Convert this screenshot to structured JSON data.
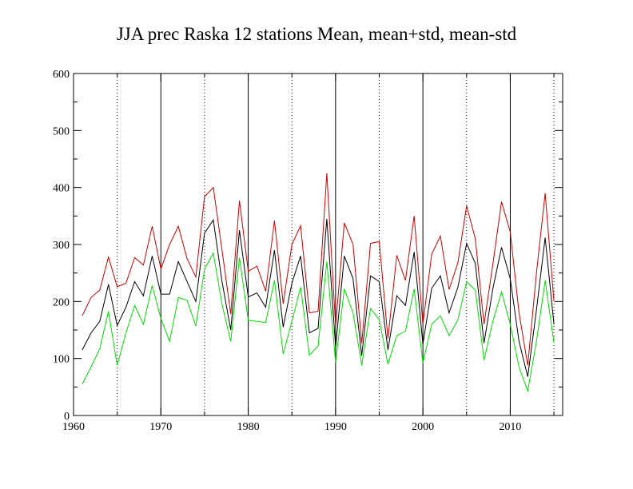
{
  "chart_data": {
    "type": "line",
    "title": "JJA prec Raska 12 stations Mean, mean+std, mean-std",
    "xlabel": "",
    "ylabel": "",
    "xlim": [
      1960,
      2016
    ],
    "ylim": [
      0,
      600
    ],
    "x_ticks": [
      1960,
      1970,
      1980,
      1990,
      2000,
      2010
    ],
    "y_ticks": [
      0,
      100,
      200,
      300,
      400,
      500,
      600
    ],
    "x_major_gridlines": [
      1970,
      1980,
      1990,
      2000,
      2010
    ],
    "x_dotted_gridlines": [
      1965,
      1975,
      1985,
      1995,
      2005,
      2015
    ],
    "grid": true,
    "legend": "none",
    "x": [
      1961,
      1962,
      1963,
      1964,
      1965,
      1966,
      1967,
      1968,
      1969,
      1970,
      1971,
      1972,
      1973,
      1974,
      1975,
      1976,
      1977,
      1978,
      1979,
      1980,
      1981,
      1982,
      1983,
      1984,
      1985,
      1986,
      1987,
      1988,
      1989,
      1990,
      1991,
      1992,
      1993,
      1994,
      1995,
      1996,
      1997,
      1998,
      1999,
      2000,
      2001,
      2002,
      2003,
      2004,
      2005,
      2006,
      2007,
      2008,
      2009,
      2010,
      2011,
      2012,
      2013,
      2014,
      2015
    ],
    "series": [
      {
        "color": "#cc0000",
        "values": [
          175,
          207,
          220,
          278,
          226,
          232,
          277,
          264,
          332,
          257,
          300,
          332,
          275,
          243,
          384,
          400,
          290,
          178,
          377,
          253,
          262,
          218,
          342,
          196,
          300,
          333,
          180,
          183,
          425,
          157,
          338,
          300,
          127,
          302,
          305,
          135,
          281,
          237,
          350,
          160,
          283,
          315,
          221,
          268,
          368,
          310,
          160,
          265,
          375,
          322,
          180,
          88,
          250,
          390,
          200
        ]
      },
      {
        "color": "#000000",
        "values": [
          115,
          145,
          165,
          230,
          158,
          190,
          235,
          210,
          280,
          213,
          213,
          270,
          235,
          200,
          320,
          343,
          235,
          150,
          325,
          208,
          215,
          190,
          290,
          155,
          232,
          280,
          145,
          153,
          345,
          120,
          280,
          240,
          105,
          245,
          235,
          115,
          210,
          193,
          287,
          125,
          223,
          245,
          180,
          225,
          302,
          267,
          127,
          222,
          295,
          240,
          130,
          68,
          185,
          312,
          160
        ]
      },
      {
        "color": "#00dd00",
        "values": [
          55,
          85,
          117,
          183,
          88,
          145,
          193,
          160,
          228,
          170,
          130,
          207,
          202,
          157,
          257,
          285,
          195,
          130,
          277,
          167,
          165,
          163,
          237,
          108,
          165,
          225,
          106,
          122,
          270,
          93,
          222,
          180,
          88,
          188,
          168,
          90,
          140,
          148,
          222,
          92,
          160,
          175,
          140,
          168,
          235,
          220,
          97,
          165,
          217,
          160,
          85,
          43,
          130,
          237,
          127
        ]
      }
    ]
  }
}
